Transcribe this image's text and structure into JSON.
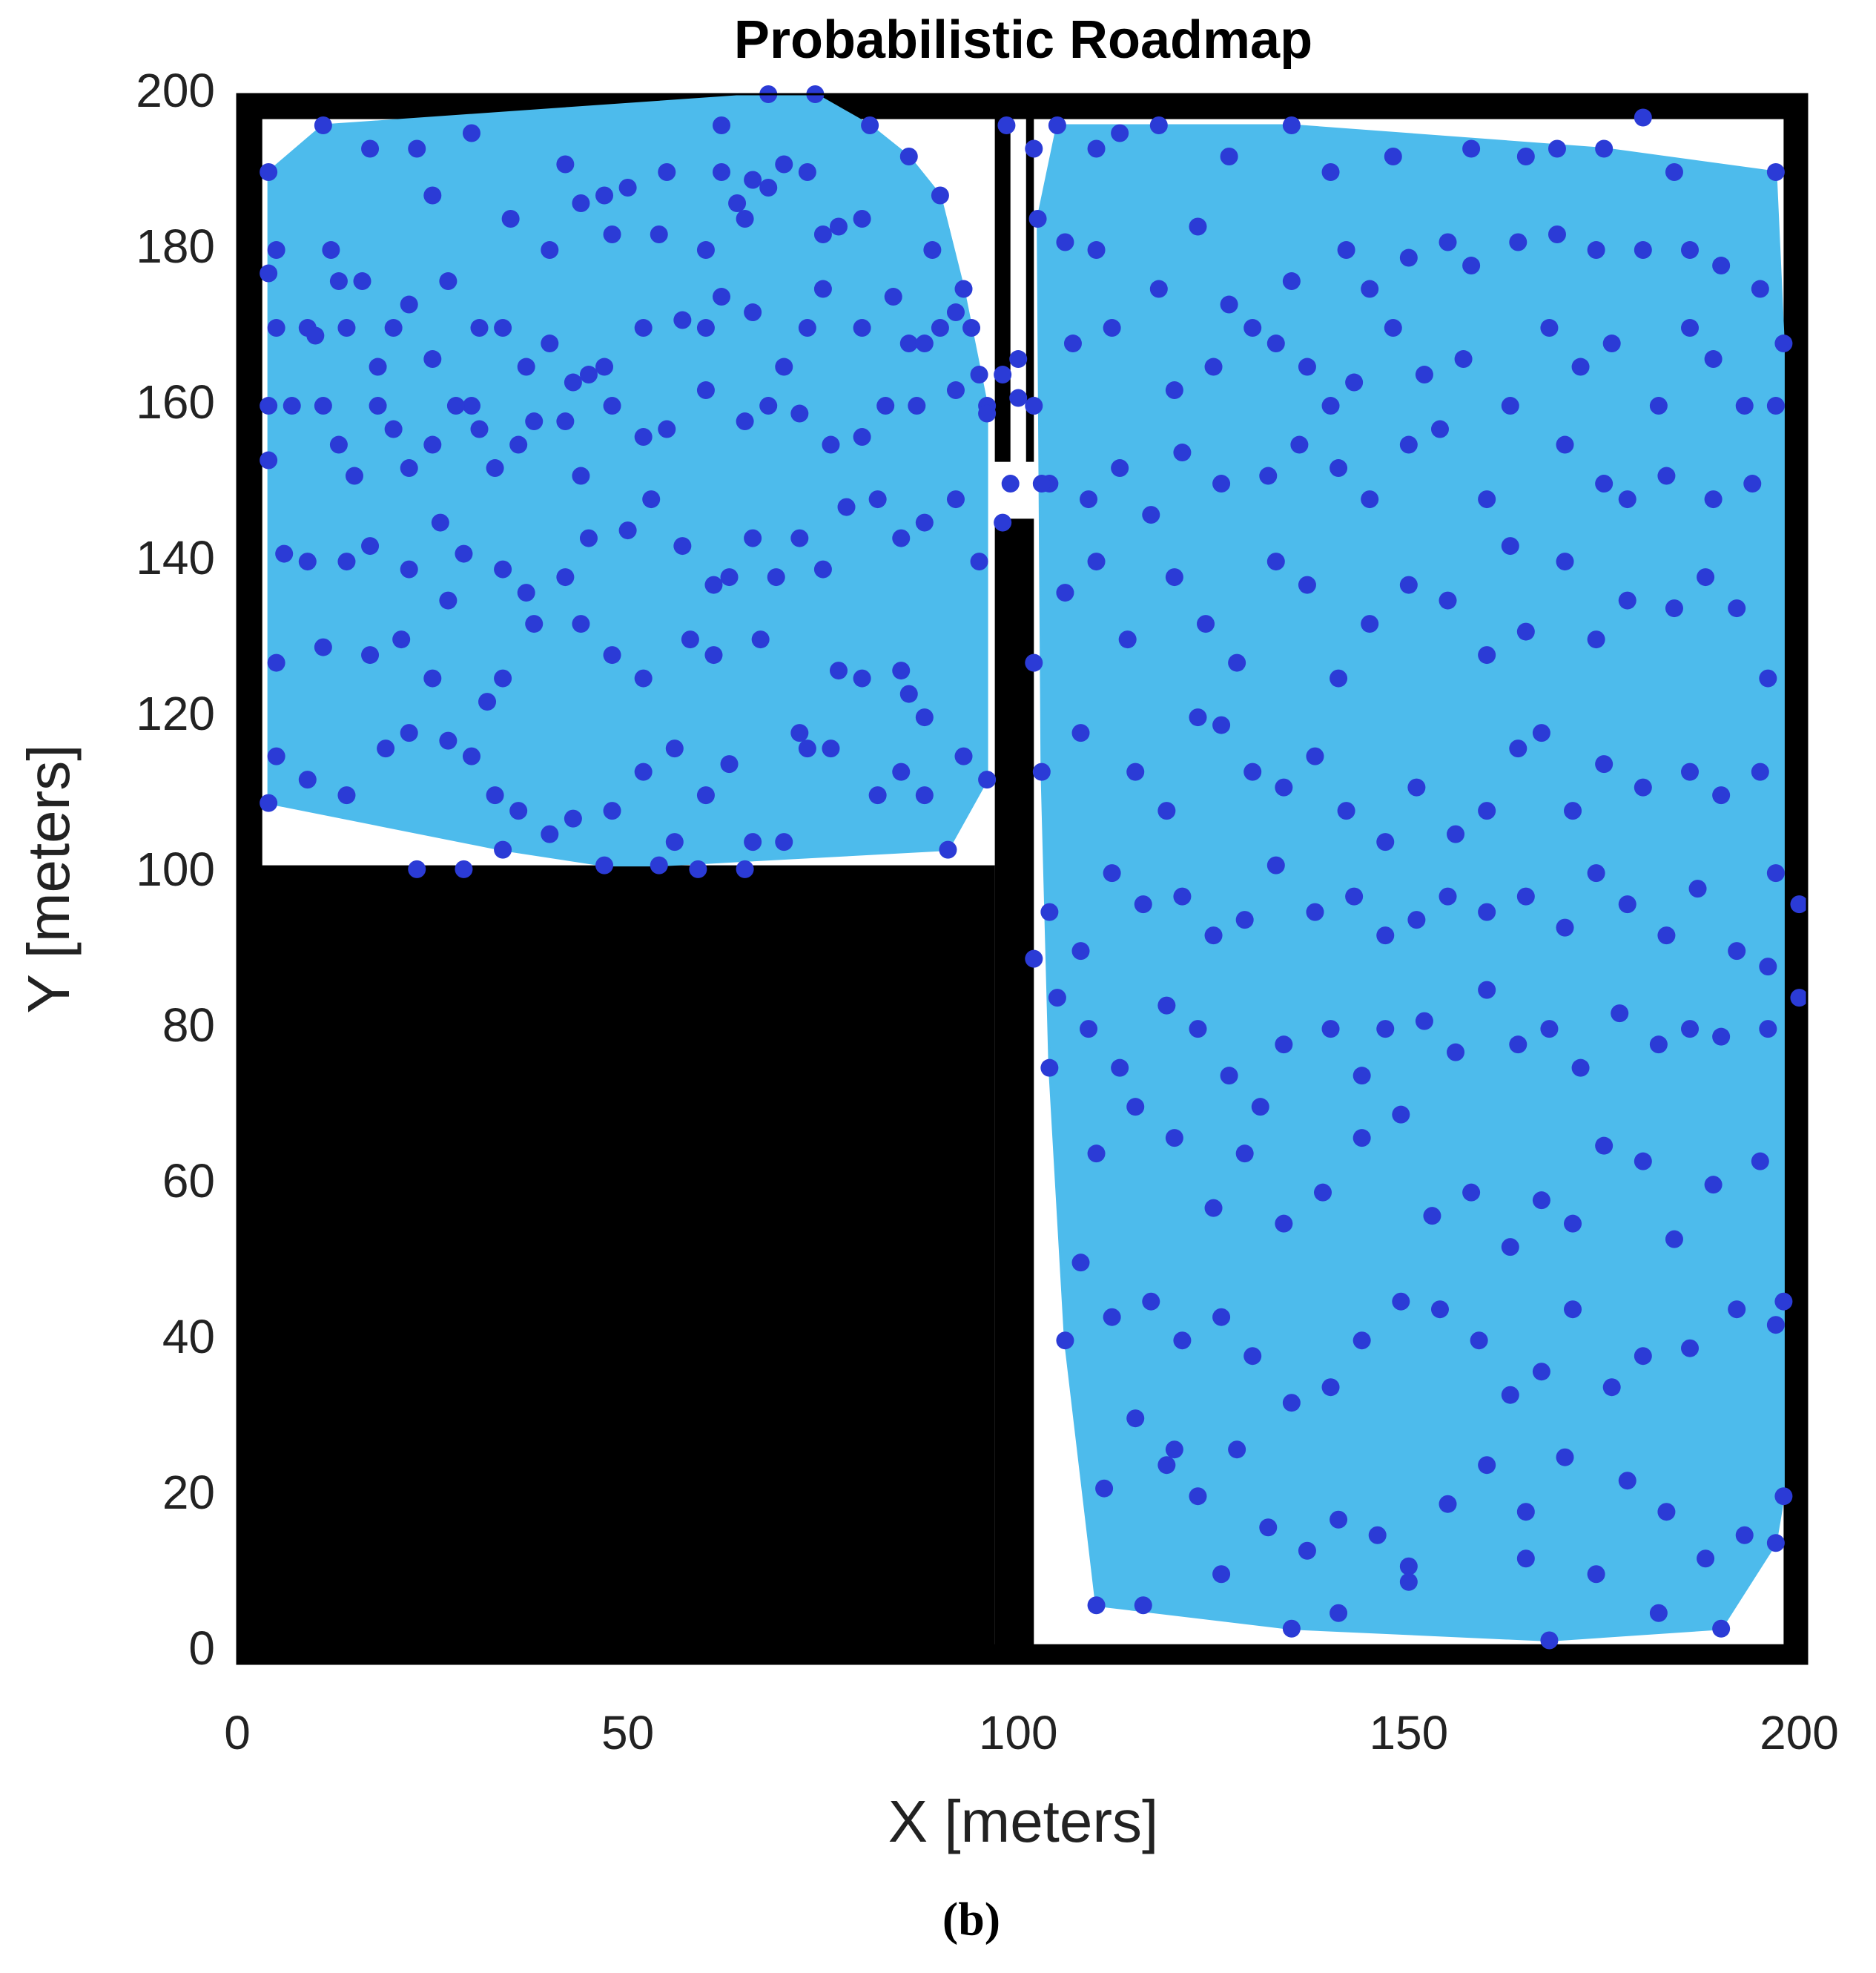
{
  "chart_data": {
    "type": "scatter",
    "title": "Probabilistic Roadmap",
    "x_label": "X [meters]",
    "y_label": "Y [meters]",
    "caption": "(b)",
    "color": "#2b3bd6",
    "edge_color": "#4dbbec",
    "obstacle_color": "#000000",
    "xlim": [
      0,
      201
    ],
    "ylim": [
      -1.5,
      200
    ],
    "xticks": [
      0,
      50,
      100,
      150,
      200
    ],
    "yticks": [
      0,
      20,
      40,
      60,
      80,
      100,
      120,
      140,
      160,
      180,
      200
    ],
    "obstacles": [
      [
        0,
        -1.5,
        3.2,
        200
      ],
      [
        0,
        196.8,
        201,
        200
      ],
      [
        198,
        -1.5,
        201,
        200
      ],
      [
        0,
        -1.5,
        201,
        1
      ],
      [
        0,
        -1.5,
        97,
        101
      ],
      [
        97,
        -1.5,
        102,
        145.5
      ],
      [
        97,
        152.8,
        99,
        200
      ],
      [
        101,
        152.8,
        102,
        197
      ]
    ],
    "x": [
      4,
      11,
      17,
      23,
      25,
      30,
      35,
      40,
      42,
      44,
      47,
      48,
      50,
      55,
      54,
      60,
      62,
      62,
      64,
      65,
      66,
      68,
      70,
      73,
      75,
      77,
      80,
      81,
      86,
      90,
      89,
      93,
      92,
      4,
      5,
      5,
      9,
      12,
      13,
      10,
      14,
      16,
      20,
      22,
      18,
      25,
      27,
      30,
      31,
      34,
      37,
      40,
      43,
      45,
      47,
      52,
      57,
      60,
      62,
      66,
      70,
      73,
      75,
      80,
      84,
      86,
      88,
      90,
      94,
      95,
      4,
      7,
      11,
      13,
      15,
      18,
      20,
      22,
      25,
      28,
      31,
      33,
      36,
      38,
      42,
      44,
      48,
      52,
      55,
      60,
      65,
      68,
      72,
      76,
      80,
      83,
      87,
      92,
      96,
      4,
      6,
      9,
      14,
      17,
      22,
      26,
      29,
      34,
      37,
      42,
      45,
      50,
      53,
      57,
      61,
      63,
      66,
      69,
      72,
      75,
      78,
      82,
      85,
      88,
      92,
      95,
      5,
      11,
      17,
      21,
      25,
      27,
      32,
      34,
      38,
      44,
      48,
      52,
      58,
      61,
      67,
      72,
      77,
      80,
      85,
      86,
      88,
      5,
      9,
      14,
      19,
      22,
      27,
      30,
      33,
      36,
      40,
      43,
      48,
      52,
      56,
      60,
      63,
      66,
      70,
      73,
      76,
      82,
      85,
      88,
      91,
      93,
      96,
      4,
      23,
      29,
      47,
      54,
      59,
      65,
      34,
      56,
      105,
      110,
      113,
      118,
      127,
      135,
      140,
      148,
      158,
      165,
      169,
      175,
      180,
      184,
      197,
      106,
      110,
      118,
      123,
      127,
      135,
      142,
      145,
      150,
      155,
      158,
      164,
      169,
      174,
      180,
      186,
      190,
      195,
      198,
      107,
      112,
      120,
      125,
      130,
      133,
      137,
      140,
      143,
      148,
      152,
      157,
      163,
      168,
      172,
      176,
      182,
      186,
      189,
      193,
      197,
      104,
      109,
      113,
      117,
      121,
      126,
      132,
      136,
      141,
      145,
      150,
      154,
      160,
      163,
      170,
      175,
      178,
      183,
      189,
      194,
      106,
      110,
      114,
      120,
      124,
      128,
      133,
      137,
      141,
      145,
      150,
      155,
      160,
      165,
      170,
      174,
      178,
      184,
      188,
      192,
      196,
      102,
      103,
      108,
      115,
      119,
      123,
      126,
      130,
      134,
      138,
      142,
      147,
      151,
      156,
      160,
      164,
      167,
      171,
      175,
      180,
      186,
      190,
      195,
      197,
      102,
      104,
      108,
      112,
      116,
      121,
      125,
      129,
      133,
      138,
      143,
      147,
      151,
      155,
      160,
      165,
      170,
      174,
      178,
      183,
      187,
      192,
      196,
      200,
      200,
      105,
      109,
      113,
      119,
      123,
      127,
      131,
      134,
      140,
      144,
      147,
      152,
      156,
      160,
      164,
      168,
      172,
      177,
      182,
      186,
      190,
      196,
      104,
      110,
      115,
      120,
      125,
      129,
      134,
      139,
      144,
      149,
      153,
      158,
      163,
      167,
      171,
      175,
      180,
      184,
      189,
      195,
      106,
      108,
      112,
      117,
      121,
      126,
      130,
      135,
      140,
      144,
      149,
      154,
      159,
      163,
      167,
      171,
      176,
      180,
      186,
      192,
      197,
      198,
      110,
      111,
      115,
      119,
      123,
      128,
      132,
      137,
      141,
      146,
      150,
      155,
      160,
      165,
      170,
      174,
      178,
      183,
      188,
      193,
      197,
      198,
      190,
      182,
      168,
      150,
      135,
      141,
      116,
      120,
      126,
      165,
      98.5,
      102,
      102.5,
      100,
      100,
      102,
      98,
      99,
      98,
      103,
      96,
      68,
      74
    ],
    "values": [
      190,
      196,
      193,
      193,
      187,
      195,
      184,
      180,
      191,
      186,
      187,
      182,
      188,
      190,
      182,
      180,
      196,
      190,
      186,
      184,
      189,
      188,
      191,
      190,
      182,
      183,
      184,
      196,
      192,
      187,
      180,
      175,
      172,
      177,
      180,
      170,
      170,
      180,
      176,
      169,
      170,
      176,
      170,
      173,
      165,
      166,
      176,
      160,
      170,
      170,
      165,
      168,
      163,
      164,
      165,
      170,
      171,
      170,
      174,
      172,
      165,
      170,
      175,
      170,
      174,
      168,
      168,
      170,
      170,
      164,
      160,
      160,
      160,
      155,
      151,
      160,
      157,
      152,
      155,
      160,
      157,
      152,
      155,
      158,
      158,
      151,
      160,
      156,
      157,
      162,
      158,
      160,
      159,
      155,
      156,
      160,
      160,
      162,
      160,
      153,
      141,
      140,
      140,
      142,
      139,
      145,
      141,
      139,
      136,
      138,
      143,
      144,
      148,
      142,
      137,
      138,
      143,
      138,
      143,
      139,
      147,
      148,
      143,
      145,
      148,
      140,
      127,
      129,
      128,
      130,
      125,
      135,
      122,
      125,
      132,
      132,
      128,
      125,
      130,
      128,
      130,
      118,
      126,
      125,
      126,
      123,
      120,
      115,
      112,
      110,
      116,
      118,
      117,
      115,
      110,
      108,
      105,
      107,
      108,
      113,
      116,
      110,
      114,
      104,
      104,
      116,
      116,
      110,
      113,
      110,
      103,
      115,
      112,
      109,
      100.5,
      100.5,
      101,
      101,
      100.5,
      100.5,
      103,
      104,
      196,
      193,
      195,
      196,
      192,
      196,
      190,
      192,
      193,
      192,
      193,
      193,
      197,
      190,
      190,
      181,
      180,
      175,
      183,
      173,
      176,
      180,
      175,
      179,
      181,
      178,
      181,
      182,
      180,
      180,
      180,
      178,
      175,
      168,
      168,
      170,
      162,
      165,
      170,
      168,
      165,
      160,
      163,
      170,
      164,
      166,
      160,
      170,
      165,
      168,
      160,
      170,
      166,
      160,
      160,
      150,
      148,
      152,
      146,
      154,
      150,
      151,
      155,
      152,
      148,
      155,
      157,
      148,
      142,
      155,
      150,
      148,
      151,
      148,
      150,
      136,
      140,
      130,
      138,
      132,
      127,
      140,
      137,
      125,
      132,
      137,
      135,
      128,
      131,
      140,
      130,
      135,
      134,
      138,
      134,
      125,
      127,
      113,
      118,
      113,
      108,
      120,
      119,
      113,
      111,
      115,
      108,
      104,
      111,
      105,
      108,
      116,
      118,
      108,
      114,
      111,
      113,
      110,
      113,
      100,
      89,
      95,
      90,
      100,
      96,
      97,
      92,
      94,
      101,
      95,
      97,
      92,
      94,
      97,
      95,
      97,
      93,
      100,
      96,
      92,
      98,
      90,
      88,
      96,
      84,
      84,
      80,
      75,
      83,
      80,
      74,
      70,
      78,
      80,
      74,
      80,
      81,
      77,
      85,
      78,
      80,
      75,
      82,
      78,
      80,
      79,
      80,
      75,
      64,
      70,
      66,
      57,
      64,
      55,
      59,
      66,
      69,
      56,
      59,
      52,
      58,
      55,
      65,
      63,
      53,
      60,
      63,
      40,
      50,
      43,
      45,
      40,
      43,
      38,
      32,
      34,
      40,
      45,
      44,
      40,
      33,
      36,
      44,
      34,
      38,
      39,
      44,
      42,
      45,
      6,
      21,
      30,
      24,
      20,
      26,
      16,
      13,
      17,
      15,
      11,
      19,
      24,
      18,
      25,
      10,
      22,
      18,
      12,
      15,
      14,
      20,
      3,
      5,
      1.5,
      9,
      3,
      5,
      6,
      26,
      10,
      12,
      196,
      193,
      184,
      166,
      161,
      160,
      164,
      150,
      145,
      150,
      159,
      200,
      200
    ]
  }
}
